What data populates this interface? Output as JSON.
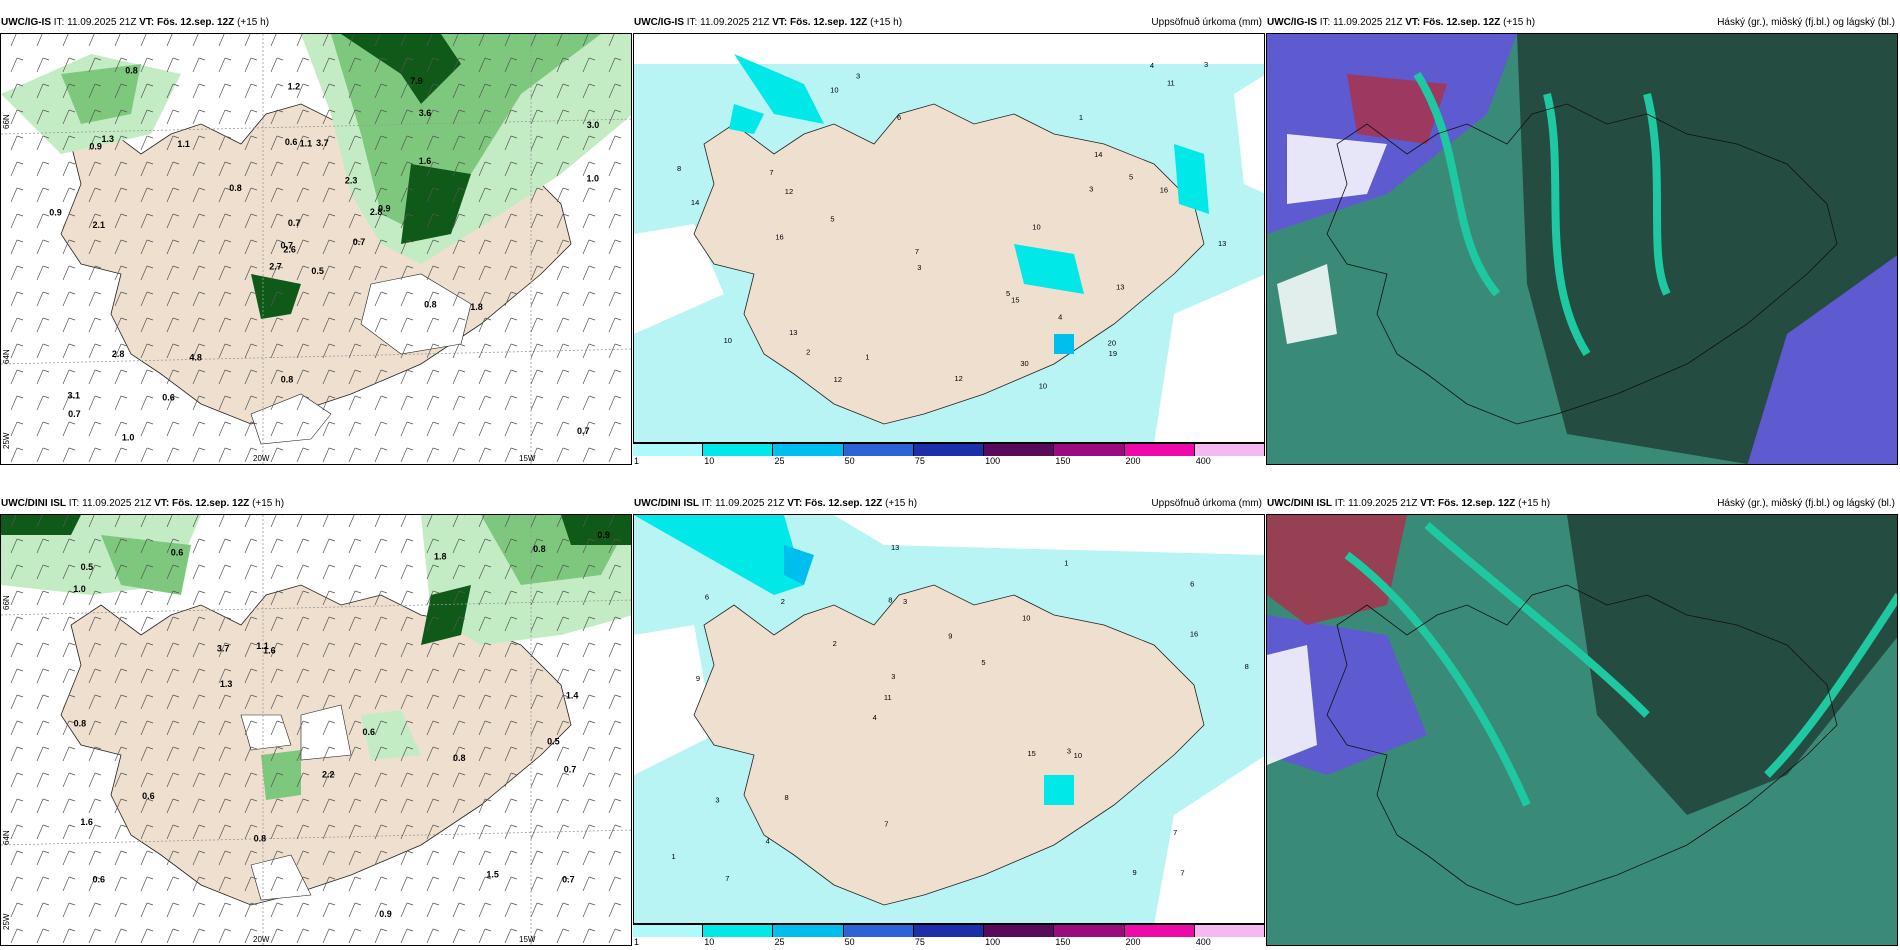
{
  "rows": [
    {
      "model": "UWC/IG-IS",
      "issue_label": "IT:",
      "issue": "11.09.2025 21Z",
      "valid_label": "VT:",
      "valid": "Fös. 12.sep. 12Z",
      "lead": "(+15 h)",
      "precip_values": [
        "0.5",
        "0.9",
        "2.6",
        "3.1",
        "2.8",
        "4.8",
        "7.9",
        "3.7",
        "3.6",
        "0.7",
        "0.8",
        "0.7",
        "2.1",
        "3.0",
        "2.7",
        "1.6",
        "1.0",
        "0.6",
        "2.3",
        "2.8",
        "0.8",
        "0.7",
        "0.6",
        "1.1",
        "0.9",
        "1.8",
        "1.3",
        "1.2",
        "0.9",
        "0.8",
        "1.0",
        "0.7",
        "0.8",
        "0.7",
        "1.1"
      ],
      "acc_values": [
        "10",
        "10",
        "13",
        "7",
        "5",
        "30",
        "13",
        "5",
        "3",
        "2",
        "10",
        "8",
        "7",
        "5",
        "3",
        "4",
        "14",
        "11",
        "13",
        "16",
        "20",
        "15",
        "12",
        "19",
        "10",
        "14",
        "16",
        "12",
        "12",
        "6",
        "4",
        "3",
        "1",
        "1",
        "3"
      ]
    },
    {
      "model": "UWC/DINI ISL",
      "issue_label": "IT:",
      "issue": "11.09.2025 21Z",
      "valid_label": "VT:",
      "valid": "Fös. 12.sep. 12Z",
      "lead": "(+15 h)",
      "precip_values": [
        "0.8",
        "0.5",
        "0.6",
        "0.6",
        "1.6",
        "1.5",
        "1.6",
        "1.8",
        "3.7",
        "0.9",
        "1.0",
        "0.8",
        "0.5",
        "0.7",
        "0.8",
        "1.4",
        "2.2",
        "0.6",
        "1.1",
        "0.6",
        "0.9",
        "0.8",
        "1.3",
        "0.7"
      ],
      "acc_values": [
        "7",
        "9",
        "6",
        "4",
        "10",
        "7",
        "8",
        "9",
        "3",
        "2",
        "1",
        "4",
        "3",
        "5",
        "10",
        "6",
        "13",
        "8",
        "15",
        "16",
        "11",
        "7",
        "3",
        "2",
        "1",
        "8",
        "9",
        "7",
        "3"
      ]
    }
  ],
  "titles": {
    "acc": "Uppsöfnuð úrkoma (mm)",
    "cloud": "Háský (gr.), miðský (fj.bl.) og lágský (bl.)"
  },
  "axes": {
    "lon_20": "20W",
    "lon_15": "15W",
    "lat_66": "66N",
    "lat_64": "64N",
    "lon_25": "25W"
  },
  "colorbar": {
    "ticks": [
      "1",
      "10",
      "25",
      "50",
      "75",
      "100",
      "150",
      "200",
      "400"
    ],
    "colors": [
      "#aef9f9",
      "#00e8e8",
      "#00bfee",
      "#2d63d6",
      "#1c2ea8",
      "#5a0a5a",
      "#9c0a80",
      "#ee0aa8",
      "#f6b8f0"
    ]
  },
  "colors": {
    "land": "#eedfcf",
    "sea_light": "#b8f4f4",
    "precip_light": "#c4ecc4",
    "precip_mid": "#7ec87e",
    "precip_dark": "#0f5a18",
    "cloud_dark": "#254c40",
    "cloud_teal": "#3a8a78",
    "cloud_blue": "#5e5ad0",
    "cloud_red": "#a8324c"
  }
}
